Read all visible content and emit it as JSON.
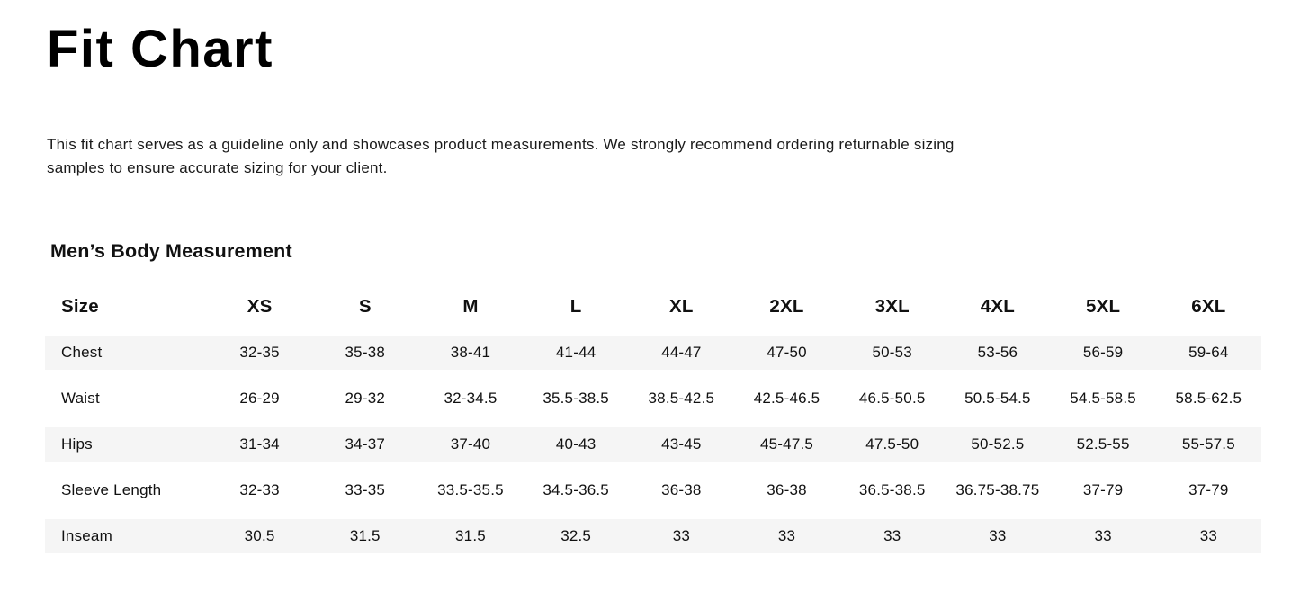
{
  "title": "Fit Chart",
  "description": "This fit chart serves as a guideline only and showcases product measurements. We strongly recommend ordering returnable sizing samples to ensure accurate sizing for your client.",
  "section": {
    "heading": "Men’s Body Measurement"
  },
  "chart_data": {
    "type": "table",
    "title": "Men’s Body Measurement",
    "columns": [
      "Size",
      "XS",
      "S",
      "M",
      "L",
      "XL",
      "2XL",
      "3XL",
      "4XL",
      "5XL",
      "6XL"
    ],
    "rows": [
      {
        "label": "Chest",
        "values": [
          "32-35",
          "35-38",
          "38-41",
          "41-44",
          "44-47",
          "47-50",
          "50-53",
          "53-56",
          "56-59",
          "59-64"
        ]
      },
      {
        "label": "Waist",
        "values": [
          "26-29",
          "29-32",
          "32-34.5",
          "35.5-38.5",
          "38.5-42.5",
          "42.5-46.5",
          "46.5-50.5",
          "50.5-54.5",
          "54.5-58.5",
          "58.5-62.5"
        ]
      },
      {
        "label": "Hips",
        "values": [
          "31-34",
          "34-37",
          "37-40",
          "40-43",
          "43-45",
          "45-47.5",
          "47.5-50",
          "50-52.5",
          "52.5-55",
          "55-57.5"
        ]
      },
      {
        "label": "Sleeve Length",
        "values": [
          "32-33",
          "33-35",
          "33.5-35.5",
          "34.5-36.5",
          "36-38",
          "36-38",
          "36.5-38.5",
          "36.75-38.75",
          "37-79",
          "37-79"
        ]
      },
      {
        "label": "Inseam",
        "values": [
          "30.5",
          "31.5",
          "31.5",
          "32.5",
          "33",
          "33",
          "33",
          "33",
          "33",
          "33"
        ]
      }
    ],
    "striped_rows": [
      "Chest",
      "Hips",
      "Inseam"
    ]
  },
  "colors": {
    "stripe": "#f5f5f5",
    "text": "#111111"
  }
}
